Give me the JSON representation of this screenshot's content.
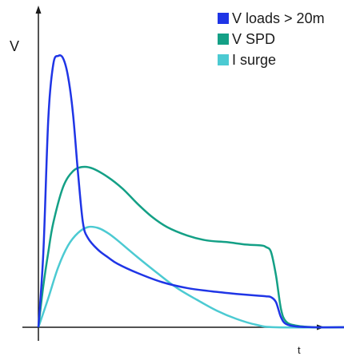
{
  "chart_data": {
    "type": "line",
    "ylabel": "V",
    "xlabel": "t",
    "grid": false,
    "legend_position": "top-right",
    "series": [
      {
        "name": "V loads > 20m",
        "color": "#1f35e6",
        "points": [
          [
            0,
            0
          ],
          [
            1,
            90
          ],
          [
            2,
            250
          ],
          [
            3,
            315
          ],
          [
            4,
            325
          ],
          [
            5,
            322
          ],
          [
            6,
            300
          ],
          [
            7,
            255
          ],
          [
            8,
            185
          ],
          [
            9,
            125
          ],
          [
            10,
            107
          ],
          [
            12,
            93
          ],
          [
            14,
            84
          ],
          [
            16,
            76
          ],
          [
            20,
            65
          ],
          [
            25,
            54
          ],
          [
            30,
            47
          ],
          [
            35,
            43
          ],
          [
            40,
            40
          ],
          [
            44,
            38
          ],
          [
            46,
            37
          ],
          [
            47,
            36
          ],
          [
            48,
            30
          ],
          [
            49,
            12
          ],
          [
            50,
            4
          ],
          [
            52,
            1
          ],
          [
            56,
            0
          ],
          [
            62,
            0
          ]
        ]
      },
      {
        "name": "V SPD",
        "color": "#14a086",
        "points": [
          [
            0,
            0
          ],
          [
            1,
            50
          ],
          [
            2,
            90
          ],
          [
            3,
            125
          ],
          [
            5,
            168
          ],
          [
            7,
            187
          ],
          [
            9,
            192
          ],
          [
            11,
            190
          ],
          [
            14,
            180
          ],
          [
            17,
            166
          ],
          [
            20,
            148
          ],
          [
            23,
            132
          ],
          [
            26,
            120
          ],
          [
            30,
            110
          ],
          [
            34,
            104
          ],
          [
            38,
            102
          ],
          [
            42,
            99
          ],
          [
            45,
            98
          ],
          [
            46,
            96
          ],
          [
            47,
            90
          ],
          [
            48,
            62
          ],
          [
            49,
            22
          ],
          [
            50,
            7
          ],
          [
            52,
            2
          ],
          [
            56,
            0
          ],
          [
            62,
            0
          ]
        ]
      },
      {
        "name": "I surge",
        "color": "#4ccad2",
        "points": [
          [
            0,
            0
          ],
          [
            2,
            35
          ],
          [
            4,
            72
          ],
          [
            6,
            98
          ],
          [
            8,
            113
          ],
          [
            10,
            120
          ],
          [
            12,
            119
          ],
          [
            14,
            113
          ],
          [
            16,
            104
          ],
          [
            20,
            84
          ],
          [
            24,
            65
          ],
          [
            28,
            47
          ],
          [
            32,
            33
          ],
          [
            36,
            20
          ],
          [
            40,
            10
          ],
          [
            44,
            3
          ],
          [
            48,
            0
          ],
          [
            62,
            0
          ]
        ]
      }
    ],
    "xlim": [
      -0.5,
      62
    ],
    "ylim": [
      -5,
      380
    ]
  }
}
